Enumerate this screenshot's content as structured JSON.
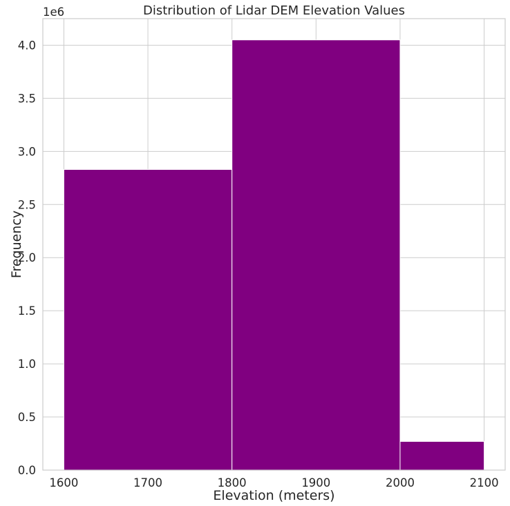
{
  "chart_data": {
    "type": "bar",
    "title": "Distribution of Lidar DEM Elevation Values",
    "xlabel": "Elevation (meters)",
    "ylabel": "Frequency",
    "y_offset_label": "1e6",
    "bins": [
      {
        "start": 1600,
        "end": 1800,
        "value": 2830000
      },
      {
        "start": 1800,
        "end": 2000,
        "value": 4050000
      },
      {
        "start": 2000,
        "end": 2100,
        "value": 270000
      }
    ],
    "xlim": [
      1575,
      2125
    ],
    "ylim": [
      0,
      4250000
    ],
    "x_ticks": [
      1600,
      1700,
      1800,
      1900,
      2000,
      2100
    ],
    "x_tick_labels": [
      "1600",
      "1700",
      "1800",
      "1900",
      "2000",
      "2100"
    ],
    "y_ticks": [
      0,
      500000,
      1000000,
      1500000,
      2000000,
      2500000,
      3000000,
      3500000,
      4000000
    ],
    "y_tick_labels": [
      "0.0",
      "0.5",
      "1.0",
      "1.5",
      "2.0",
      "2.5",
      "3.0",
      "3.5",
      "4.0"
    ],
    "grid": true,
    "colors": {
      "bar": "#800080",
      "bar_edge": "#ffffff",
      "grid": "#cccccc",
      "spine": "#cccccc",
      "text": "#262626"
    }
  }
}
